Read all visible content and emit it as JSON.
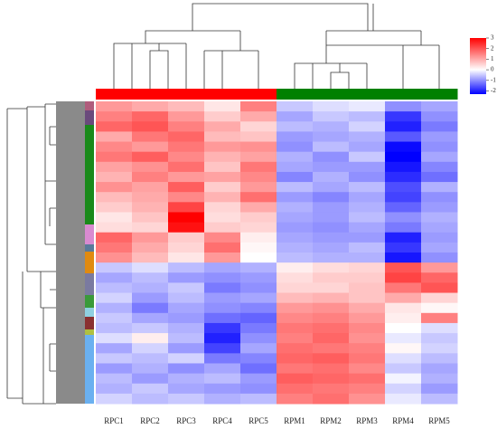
{
  "chart_data": {
    "type": "heatmap",
    "categories": [
      "RPC1",
      "RPC2",
      "RPC3",
      "RPC4",
      "RPC5",
      "RPM1",
      "RPM2",
      "RPM3",
      "RPM4",
      "RPM5"
    ],
    "group_colors": [
      "#ff0000",
      "#ff0000",
      "#ff0000",
      "#ff0000",
      "#ff0000",
      "#008000",
      "#008000",
      "#008000",
      "#008000",
      "#008000"
    ],
    "colorscale": [
      "#0000ff",
      "#ffffff",
      "#ff0000"
    ],
    "zlim": [
      -2.3,
      3
    ],
    "zcenter": 0,
    "zticks": [
      3,
      2,
      1,
      0,
      -1,
      -2
    ],
    "matrix": [
      [
        1.2,
        1.0,
        0.8,
        0.3,
        1.5,
        -0.5,
        -0.3,
        -0.2,
        -1.0,
        -0.8
      ],
      [
        1.5,
        1.8,
        1.2,
        0.6,
        1.0,
        -0.8,
        -0.5,
        -0.6,
        -1.8,
        -1.0
      ],
      [
        1.8,
        2.0,
        1.5,
        1.0,
        0.5,
        -0.6,
        -0.7,
        -0.4,
        -2.0,
        -1.2
      ],
      [
        1.0,
        1.6,
        1.8,
        0.8,
        0.7,
        -0.9,
        -0.8,
        -0.7,
        -1.5,
        -0.9
      ],
      [
        1.4,
        1.2,
        1.6,
        1.2,
        1.3,
        -1.0,
        -0.6,
        -0.8,
        -2.2,
        -1.0
      ],
      [
        1.6,
        1.9,
        1.4,
        0.9,
        1.1,
        -0.7,
        -1.0,
        -0.5,
        -2.3,
        -0.8
      ],
      [
        1.1,
        1.3,
        1.7,
        0.7,
        1.6,
        -0.8,
        -0.9,
        -0.9,
        -2.1,
        -1.1
      ],
      [
        0.9,
        1.5,
        1.2,
        1.1,
        1.4,
        -1.1,
        -0.7,
        -1.0,
        -1.9,
        -1.3
      ],
      [
        1.3,
        1.1,
        1.9,
        0.6,
        1.2,
        -0.6,
        -0.8,
        -0.6,
        -1.6,
        -0.7
      ],
      [
        0.8,
        1.0,
        1.4,
        0.9,
        1.7,
        -0.9,
        -1.1,
        -0.8,
        -1.7,
        -1.0
      ],
      [
        0.6,
        0.9,
        2.2,
        0.5,
        1.0,
        -0.7,
        -0.9,
        -0.7,
        -1.4,
        -0.9
      ],
      [
        0.3,
        0.7,
        3.0,
        0.4,
        0.6,
        -0.8,
        -0.9,
        -0.6,
        -1.0,
        -0.7
      ],
      [
        0.4,
        0.5,
        2.8,
        0.6,
        0.5,
        -0.9,
        -1.0,
        -0.8,
        -1.2,
        -0.8
      ],
      [
        1.8,
        1.2,
        0.6,
        1.4,
        0.2,
        -0.8,
        -0.9,
        -0.9,
        -2.0,
        -0.9
      ],
      [
        1.6,
        1.0,
        0.5,
        1.7,
        0.1,
        -0.7,
        -0.8,
        -0.6,
        -1.8,
        -0.8
      ],
      [
        1.3,
        0.8,
        0.3,
        1.2,
        0.0,
        -0.6,
        -0.7,
        -0.7,
        -2.1,
        -1.0
      ],
      [
        -0.5,
        -0.3,
        -0.6,
        -0.8,
        -0.7,
        0.2,
        0.4,
        0.5,
        2.0,
        1.2
      ],
      [
        -0.8,
        -0.6,
        -0.9,
        -1.0,
        -0.9,
        0.4,
        0.6,
        0.6,
        2.2,
        1.8
      ],
      [
        -0.6,
        -0.7,
        -0.5,
        -1.2,
        -1.0,
        0.5,
        0.5,
        0.7,
        1.6,
        2.0
      ],
      [
        -0.4,
        -0.9,
        -0.6,
        -0.9,
        -0.8,
        0.8,
        0.9,
        0.7,
        1.0,
        0.5
      ],
      [
        -0.7,
        -1.2,
        -0.8,
        -1.0,
        -1.1,
        1.2,
        1.3,
        1.0,
        0.3,
        0.1
      ],
      [
        -0.5,
        -0.8,
        -0.9,
        -1.3,
        -1.4,
        1.4,
        1.5,
        1.2,
        0.2,
        1.5
      ],
      [
        -0.6,
        -0.5,
        -0.7,
        -1.8,
        -1.2,
        1.6,
        1.7,
        1.4,
        0.0,
        -0.3
      ],
      [
        -0.3,
        0.2,
        -0.6,
        -2.0,
        -1.0,
        1.5,
        1.8,
        1.3,
        -0.2,
        -0.5
      ],
      [
        -0.8,
        -0.4,
        -0.9,
        -1.7,
        -0.8,
        1.7,
        1.6,
        1.5,
        0.1,
        -0.4
      ],
      [
        -0.5,
        -0.6,
        -0.4,
        -1.2,
        -1.1,
        1.8,
        1.9,
        1.6,
        -0.3,
        -0.6
      ],
      [
        -0.9,
        -0.7,
        -1.0,
        -0.8,
        -1.3,
        1.6,
        1.7,
        1.4,
        -0.5,
        -0.8
      ],
      [
        -0.6,
        -0.9,
        -0.7,
        -0.6,
        -0.9,
        1.9,
        1.8,
        1.7,
        -0.1,
        -0.7
      ],
      [
        -0.7,
        -0.5,
        -0.8,
        -0.9,
        -1.0,
        1.7,
        1.6,
        1.5,
        -0.4,
        -0.9
      ],
      [
        -0.4,
        -0.6,
        -0.5,
        -0.7,
        -0.6,
        1.5,
        1.7,
        1.3,
        -0.2,
        -0.6
      ]
    ]
  }
}
